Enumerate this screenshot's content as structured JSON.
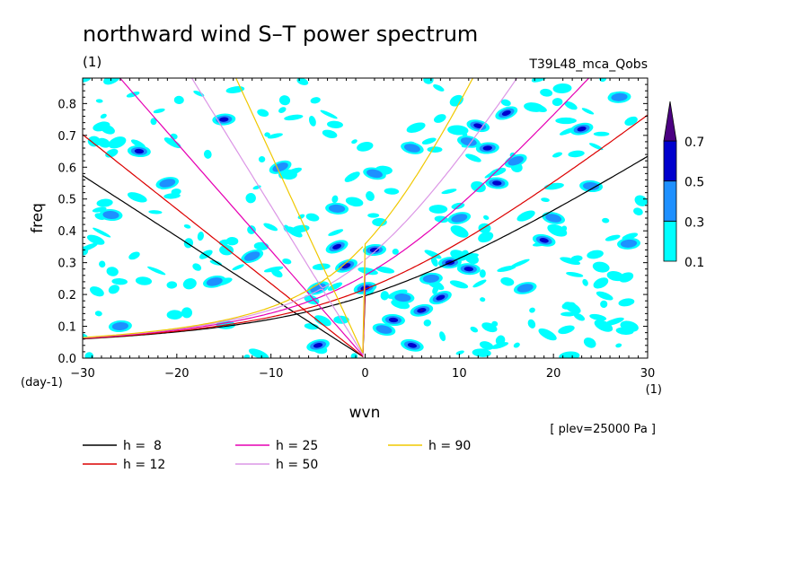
{
  "chart_data": {
    "type": "heatmap",
    "title": "northward wind S–T power spectrum",
    "subtitle_left": "(1)",
    "subtitle_right": "T39L48_mca_Qobs",
    "xlabel": "wvn",
    "ylabel": "freq",
    "x_unit": "(1)",
    "y_unit": "(day-1)",
    "xlim": [
      -30,
      30
    ],
    "ylim": [
      0,
      0.88
    ],
    "x_ticks": [
      -30,
      -20,
      -10,
      0,
      10,
      20,
      30
    ],
    "x_tick_labels": [
      "−30",
      "−20",
      "−10",
      "0",
      "10",
      "20",
      "30"
    ],
    "y_ticks": [
      0,
      0.1,
      0.2,
      0.3,
      0.4,
      0.5,
      0.6,
      0.7,
      0.8
    ],
    "y_tick_labels": [
      "0.0",
      "0.1",
      "0.2",
      "0.3",
      "0.4",
      "0.5",
      "0.6",
      "0.7",
      "0.8"
    ],
    "annotation": "[ plev=25000 Pa ]",
    "colorbar": {
      "levels": [
        0.1,
        0.3,
        0.5,
        0.7
      ],
      "labels": [
        "0.1",
        "0.3",
        "0.5",
        "0.7"
      ],
      "colors": [
        "#00ffff",
        "#1e90ff",
        "#0000cd",
        "#4b0082"
      ]
    },
    "dispersion_curves": [
      {
        "name": "h =  8",
        "h": 8,
        "color": "#000000"
      },
      {
        "name": "h = 12",
        "h": 12,
        "color": "#dc0000"
      },
      {
        "name": "h = 25",
        "h": 25,
        "color": "#e600b4"
      },
      {
        "name": "h = 50",
        "h": 50,
        "color": "#dc96e6"
      },
      {
        "name": "h = 90",
        "h": 90,
        "color": "#f0c800"
      }
    ],
    "features": [
      {
        "x": -2.0,
        "y": 0.29,
        "level": 0.7
      },
      {
        "x": 6.0,
        "y": 0.15,
        "level": 0.7
      },
      {
        "x": 9.0,
        "y": 0.3,
        "level": 0.7
      },
      {
        "x": 3.0,
        "y": 0.12,
        "level": 0.5
      },
      {
        "x": 5.0,
        "y": 0.04,
        "level": 0.5
      },
      {
        "x": -3.0,
        "y": 0.35,
        "level": 0.5
      },
      {
        "x": -5.0,
        "y": 0.04,
        "level": 0.5
      },
      {
        "x": 13.0,
        "y": 0.66,
        "level": 0.5
      },
      {
        "x": 14.0,
        "y": 0.55,
        "level": 0.5
      },
      {
        "x": 12.0,
        "y": 0.73,
        "level": 0.5
      },
      {
        "x": 8.0,
        "y": 0.19,
        "level": 0.5
      },
      {
        "x": 0.0,
        "y": 0.22,
        "level": 0.5
      },
      {
        "x": 1.0,
        "y": 0.34,
        "level": 0.5
      },
      {
        "x": 11.0,
        "y": 0.28,
        "level": 0.5
      },
      {
        "x": 19.0,
        "y": 0.37,
        "level": 0.5
      },
      {
        "x": 15.0,
        "y": 0.77,
        "level": 0.5
      },
      {
        "x": 23.0,
        "y": 0.72,
        "level": 0.5
      },
      {
        "x": -15.0,
        "y": 0.75,
        "level": 0.5
      },
      {
        "x": -24.0,
        "y": 0.65,
        "level": 0.5
      },
      {
        "x": 11.0,
        "y": 0.68,
        "level": 0.3
      },
      {
        "x": 16.0,
        "y": 0.62,
        "level": 0.3
      },
      {
        "x": 10.0,
        "y": 0.44,
        "level": 0.3
      },
      {
        "x": 7.0,
        "y": 0.25,
        "level": 0.3
      },
      {
        "x": 4.0,
        "y": 0.19,
        "level": 0.3
      },
      {
        "x": 2.0,
        "y": 0.09,
        "level": 0.3
      },
      {
        "x": -5.0,
        "y": 0.22,
        "level": 0.3
      },
      {
        "x": -16.0,
        "y": 0.24,
        "level": 0.3
      },
      {
        "x": -26.0,
        "y": 0.1,
        "level": 0.3
      },
      {
        "x": 24.0,
        "y": 0.54,
        "level": 0.3
      },
      {
        "x": 20.0,
        "y": 0.44,
        "level": 0.3
      },
      {
        "x": -9.0,
        "y": 0.6,
        "level": 0.3
      },
      {
        "x": -21.0,
        "y": 0.55,
        "level": 0.3
      },
      {
        "x": 27.0,
        "y": 0.82,
        "level": 0.3
      },
      {
        "x": -3.0,
        "y": 0.47,
        "level": 0.3
      },
      {
        "x": 5.0,
        "y": 0.66,
        "level": 0.3
      },
      {
        "x": -12.0,
        "y": 0.32,
        "level": 0.3
      },
      {
        "x": 17.0,
        "y": 0.22,
        "level": 0.3
      },
      {
        "x": 28.0,
        "y": 0.36,
        "level": 0.3
      },
      {
        "x": -27.0,
        "y": 0.45,
        "level": 0.3
      },
      {
        "x": 1.0,
        "y": 0.58,
        "level": 0.3
      }
    ],
    "legend_placement": "bottom"
  }
}
